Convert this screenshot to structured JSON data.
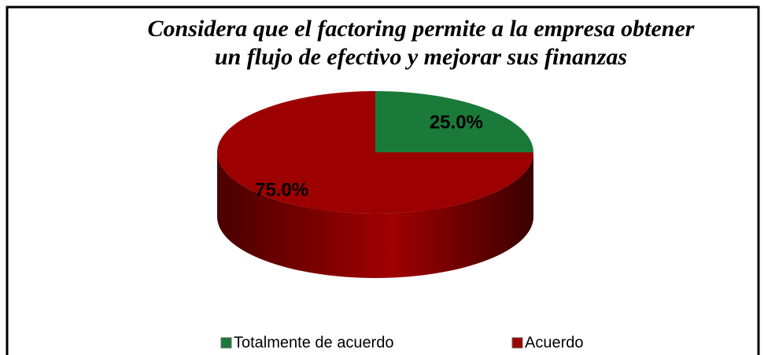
{
  "chart_data": {
    "type": "pie",
    "title": [
      "Considera que el factoring permite a la empresa obtener",
      "un flujo de efectivo y mejorar sus finanzas"
    ],
    "categories": [
      "Totalmente de acuerdo",
      "Acuerdo"
    ],
    "values": [
      25,
      75
    ],
    "value_labels": [
      "25.0%",
      "75.0%"
    ],
    "colors": [
      "#1a7a3a",
      "#9c0000"
    ],
    "legend": "bottom"
  }
}
